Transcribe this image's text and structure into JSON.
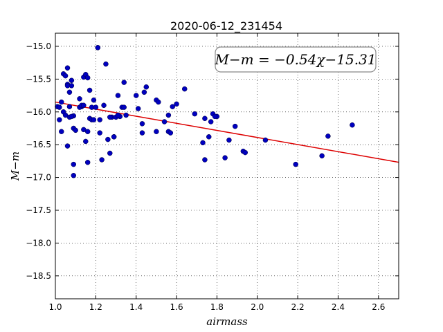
{
  "chart_data": {
    "type": "scatter",
    "title": "2020-06-12_231454",
    "xlabel": "airmass",
    "ylabel": "M−m",
    "xlim": [
      1.0,
      2.7
    ],
    "ylim": [
      -18.85,
      -14.8
    ],
    "xticks": [
      1.0,
      1.2,
      1.4,
      1.6,
      1.8,
      2.0,
      2.2,
      2.4,
      2.6
    ],
    "xtick_labels": [
      "1.0",
      "1.2",
      "1.4",
      "1.6",
      "1.8",
      "2.0",
      "2.2",
      "2.4",
      "2.6"
    ],
    "yticks": [
      -15.0,
      -15.5,
      -16.0,
      -16.5,
      -17.0,
      -17.5,
      -18.0,
      -18.5
    ],
    "ytick_labels": [
      "−15.0",
      "−15.5",
      "−16.0",
      "−16.5",
      "−17.0",
      "−17.5",
      "−18.0",
      "−18.5"
    ],
    "grid": true,
    "annotation": "M−m = −0.54χ−15.31",
    "fit": {
      "slope": -0.54,
      "intercept": -15.31,
      "color": "#dd0000"
    },
    "marker_color": "#0000bf",
    "x": [
      1.01,
      1.03,
      1.04,
      1.05,
      1.06,
      1.06,
      1.07,
      1.07,
      1.08,
      1.08,
      1.09,
      1.09,
      1.02,
      1.03,
      1.04,
      1.05,
      1.06,
      1.07,
      1.08,
      1.09,
      1.1,
      1.12,
      1.13,
      1.14,
      1.15,
      1.16,
      1.17,
      1.18,
      1.19,
      1.2,
      1.21,
      1.22,
      1.23,
      1.24,
      1.25,
      1.26,
      1.27,
      1.28,
      1.29,
      1.3,
      1.31,
      1.32,
      1.33,
      1.34,
      1.35,
      1.12,
      1.13,
      1.14,
      1.15,
      1.16,
      1.17,
      1.18,
      1.19,
      1.21,
      1.22,
      1.27,
      1.29,
      1.31,
      1.34,
      1.4,
      1.41,
      1.43,
      1.44,
      1.45,
      1.5,
      1.51,
      1.54,
      1.56,
      1.58,
      1.6,
      1.64,
      1.69,
      1.73,
      1.74,
      1.76,
      1.78,
      1.8,
      1.84,
      1.86,
      1.89,
      1.93,
      1.94,
      1.43,
      1.5,
      1.56,
      1.57,
      1.74,
      1.77,
      1.79,
      2.04,
      2.19,
      2.32,
      2.35,
      2.47,
      1.09,
      1.14,
      1.16,
      1.06,
      1.02
    ],
    "y": [
      -15.92,
      -15.85,
      -15.42,
      -15.45,
      -15.33,
      -15.58,
      -15.92,
      -15.7,
      -15.6,
      -15.52,
      -16.06,
      -16.25,
      -16.12,
      -16.3,
      -16.0,
      -16.05,
      -16.52,
      -16.08,
      -16.07,
      -16.8,
      -16.28,
      -15.8,
      -15.92,
      -15.47,
      -15.43,
      -16.77,
      -15.67,
      -15.93,
      -15.82,
      -15.93,
      -15.02,
      -16.32,
      -16.73,
      -15.9,
      -15.27,
      -16.42,
      -16.63,
      -16.08,
      -16.38,
      -16.08,
      -15.75,
      -16.07,
      -15.93,
      -15.55,
      -16.05,
      -15.93,
      -15.9,
      -16.27,
      -16.45,
      -15.48,
      -16.1,
      -16.12,
      -16.12,
      -15.02,
      -16.12,
      -16.08,
      -16.38,
      -16.05,
      -15.93,
      -15.75,
      -15.95,
      -16.18,
      -15.7,
      -15.62,
      -15.82,
      -15.85,
      -16.15,
      -16.05,
      -15.92,
      -15.88,
      -15.65,
      -16.03,
      -16.47,
      -16.1,
      -16.38,
      -16.03,
      -16.07,
      -16.7,
      -16.43,
      -16.22,
      -16.6,
      -16.62,
      -16.32,
      -16.3,
      -16.3,
      -16.32,
      -16.73,
      -16.15,
      -16.07,
      -16.43,
      -16.8,
      -16.67,
      -16.37,
      -16.2,
      -16.97,
      -15.9,
      -16.3,
      -15.6,
      -15.93
    ]
  }
}
